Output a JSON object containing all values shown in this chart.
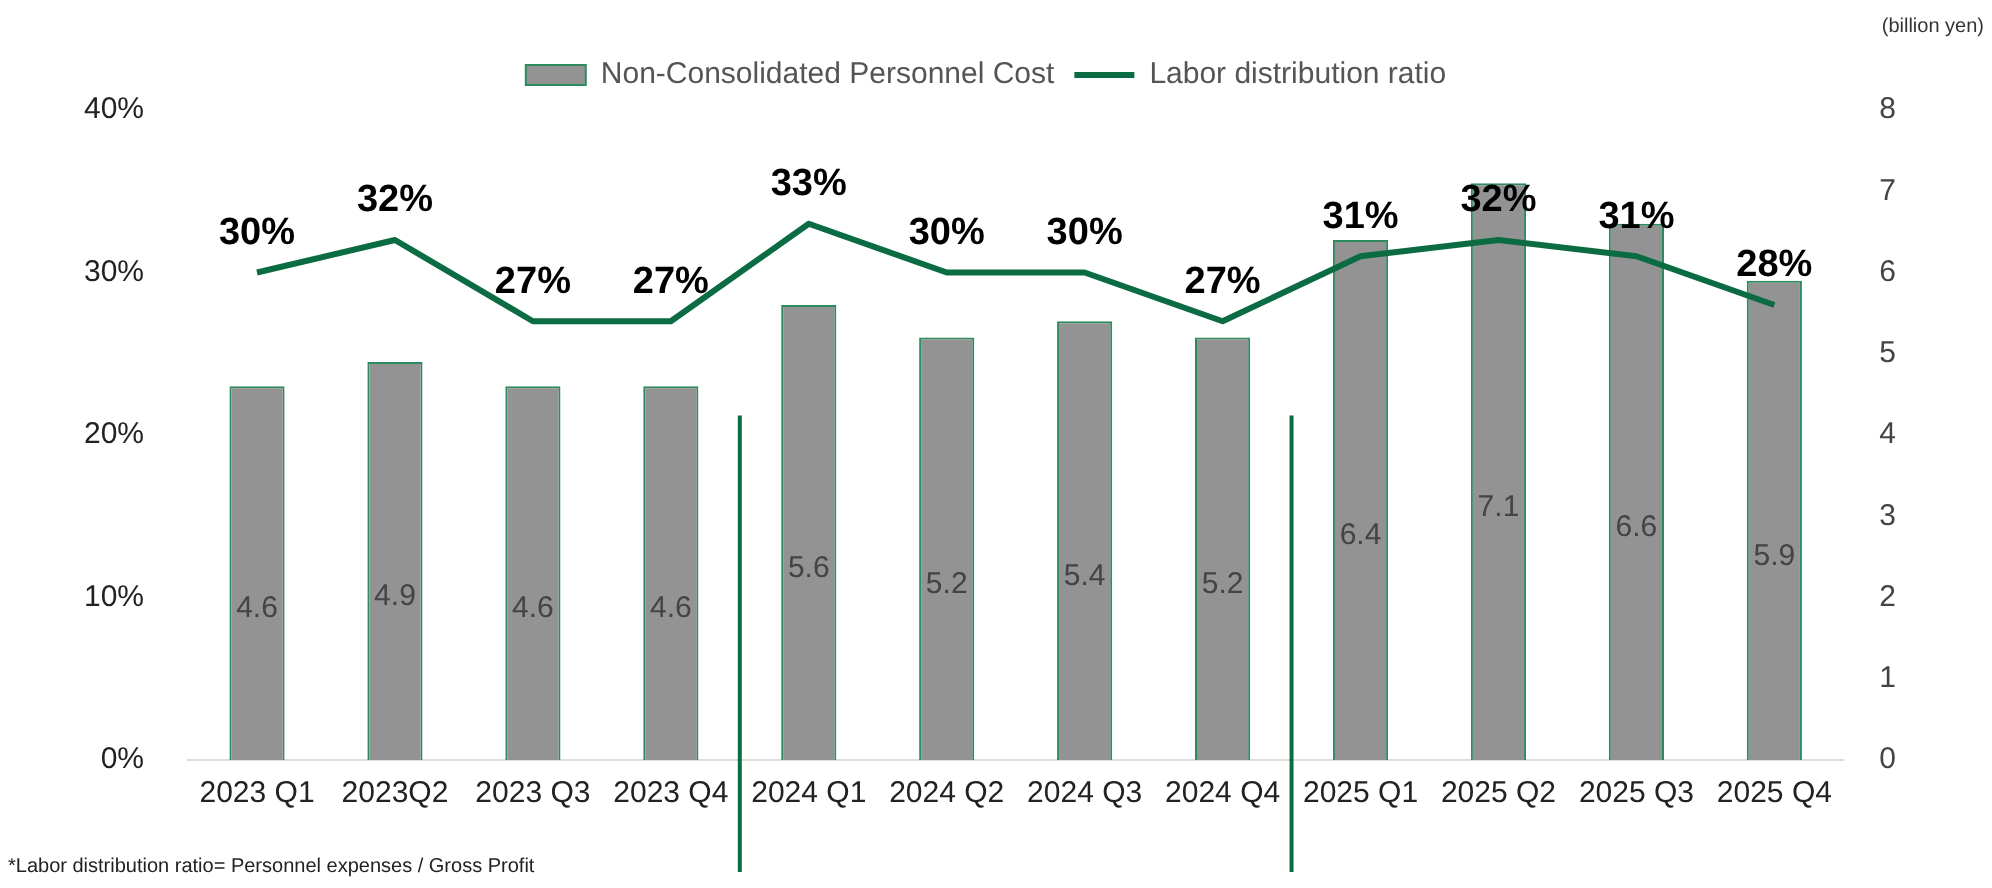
{
  "chart_data": {
    "type": "bar",
    "y2label": "(billion yen)",
    "categories": [
      "2023 Q1",
      "2023Q2",
      "2023 Q3",
      "2023 Q4",
      "2024 Q1",
      "2024 Q2",
      "2024 Q3",
      "2024 Q4",
      "2025 Q1",
      "2025 Q2",
      "2025 Q3",
      "2025 Q4"
    ],
    "series": [
      {
        "name": "Non-Consolidated Personnel Cost",
        "axis": "y2",
        "color": "#939393",
        "values": [
          4.6,
          4.9,
          4.6,
          4.6,
          5.6,
          5.2,
          5.4,
          5.2,
          6.4,
          7.1,
          6.6,
          5.9
        ],
        "value_labels": [
          "4.6",
          "4.9",
          "4.6",
          "4.6",
          "5.6",
          "5.2",
          "5.4",
          "5.2",
          "6.4",
          "7.1",
          "6.6",
          "5.9"
        ]
      },
      {
        "name": "Labor distribution ratio",
        "type": "line",
        "color": "#0b6b42",
        "values": [
          30,
          32,
          27,
          27,
          33,
          30,
          30,
          27,
          31,
          32,
          31,
          28
        ],
        "value_labels": [
          "30%",
          "32%",
          "27%",
          "27%",
          "33%",
          "30%",
          "30%",
          "27%",
          "31%",
          "32%",
          "31%",
          "28%"
        ]
      }
    ],
    "ylim": [
      0,
      40
    ],
    "yticks": [
      {
        "value": 0,
        "label": "0%"
      },
      {
        "value": 10,
        "label": "10%"
      },
      {
        "value": 20,
        "label": "20%"
      },
      {
        "value": 30,
        "label": "30%"
      },
      {
        "value": 40,
        "label": "40%"
      }
    ],
    "y2lim": [
      0,
      8
    ],
    "y2ticks": [
      0,
      1,
      2,
      3,
      4,
      5,
      6,
      7,
      8
    ],
    "grid": false,
    "legend": "top",
    "marker": "none",
    "line_style": "solid",
    "annotations": [
      "*Labor distribution ratio= Personnel expenses / Gross Profit"
    ]
  }
}
